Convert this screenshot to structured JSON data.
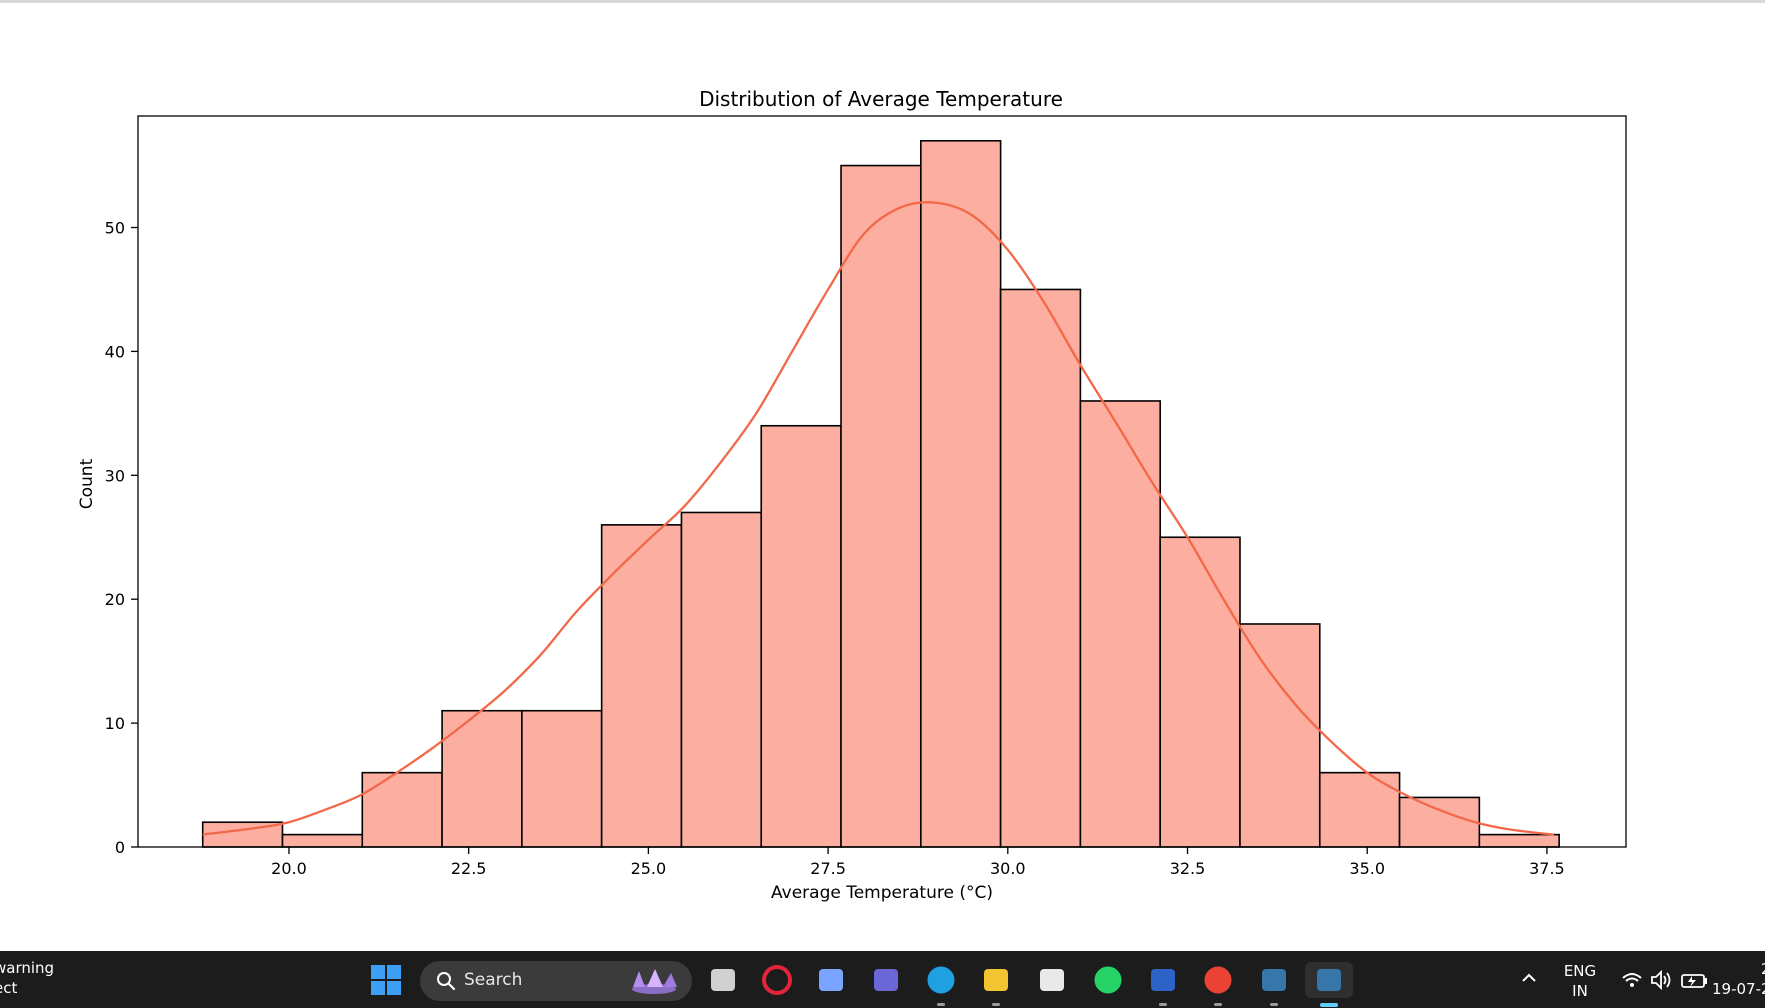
{
  "chart_data": {
    "type": "histogram",
    "title": "Distribution of Average Temperature",
    "xlabel": "Average Temperature (°C)",
    "ylabel": "Count",
    "xlim": [
      17.9,
      38.6
    ],
    "ylim": [
      0,
      59
    ],
    "xticks": [
      20.0,
      22.5,
      25.0,
      27.5,
      30.0,
      32.5,
      35.0,
      37.5
    ],
    "yticks": [
      0,
      10,
      20,
      30,
      40,
      50
    ],
    "bin_start": 18.8,
    "bin_width": 1.11,
    "counts": [
      2,
      1,
      6,
      11,
      11,
      26,
      27,
      34,
      55,
      57,
      45,
      36,
      25,
      18,
      6,
      4,
      1
    ],
    "kde": {
      "x": [
        18.8,
        19.5,
        20.0,
        20.5,
        21.0,
        21.5,
        22.0,
        22.5,
        23.0,
        23.5,
        24.0,
        24.5,
        25.0,
        25.5,
        26.0,
        26.5,
        27.0,
        27.5,
        28.0,
        28.5,
        29.0,
        29.5,
        30.0,
        30.5,
        31.0,
        31.5,
        32.0,
        32.5,
        33.0,
        33.5,
        34.0,
        34.5,
        35.0,
        35.5,
        36.0,
        36.5,
        37.0,
        37.6
      ],
      "y": [
        1,
        1.5,
        2,
        3,
        4.2,
        6,
        8,
        10.2,
        12.6,
        15.5,
        19,
        22,
        24.8,
        27.5,
        31,
        35,
        40,
        45,
        49.5,
        51.6,
        52,
        51,
        48.2,
        44,
        39,
        34.3,
        29.5,
        25,
        20,
        15.3,
        11.5,
        8.5,
        6,
        4.3,
        3,
        2,
        1.4,
        1
      ]
    },
    "bar_color": "#fcaea0",
    "kde_color": "#f26849",
    "grid": false
  },
  "taskbar": {
    "notification_line1": "warning",
    "notification_line2": "ect",
    "search_label": "Search",
    "lang_line1": "ENG",
    "lang_line2": "IN",
    "clock_line1": "2",
    "clock_line2": "19-07-2",
    "apps": [
      {
        "name": "task-view-icon",
        "color": "#d0d0d0"
      },
      {
        "name": "opera-icon",
        "color": "#e3243c"
      },
      {
        "name": "copilot-icon",
        "color": "#7aa5ff"
      },
      {
        "name": "teams-icon",
        "color": "#6a68d8"
      },
      {
        "name": "edge-icon",
        "color": "#1fa0e0"
      },
      {
        "name": "file-explorer-icon",
        "color": "#f4c430"
      },
      {
        "name": "microsoft-store-icon",
        "color": "#e9e9e9"
      },
      {
        "name": "whatsapp-icon",
        "color": "#25d366"
      },
      {
        "name": "word-icon",
        "color": "#2b63c6"
      },
      {
        "name": "chrome-icon",
        "color": "#ea4335"
      },
      {
        "name": "python-idle-icon",
        "color": "#3776ab"
      },
      {
        "name": "python-active-icon",
        "color": "#3776ab"
      }
    ]
  }
}
